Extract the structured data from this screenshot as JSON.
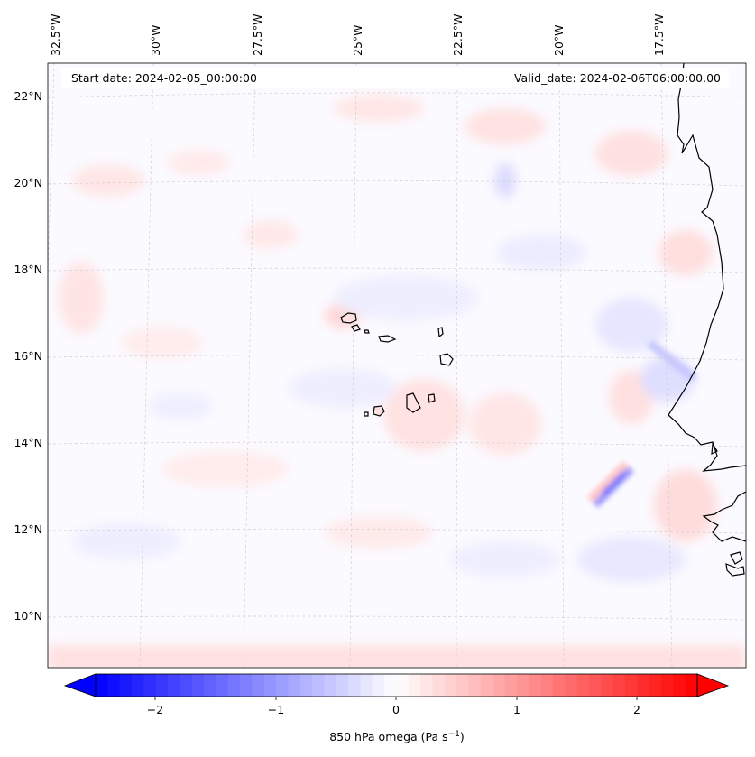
{
  "header": {
    "start_date": "Start date: 2024-02-05_00:00:00",
    "valid_date": "Valid_date: 2024-02-06T06:00:00.00"
  },
  "lon_labels": [
    "32.5°W",
    "30°W",
    "27.5°W",
    "25°W",
    "22.5°W",
    "20°W",
    "17.5°W"
  ],
  "lat_labels": [
    "22°N",
    "20°N",
    "18°N",
    "16°N",
    "14°N",
    "12°N",
    "10°N"
  ],
  "colorbar": {
    "ticks": [
      "−2",
      "−1",
      "0",
      "1",
      "2"
    ],
    "title_main": "850 hPa omega (Pa s",
    "title_sup": "−1",
    "title_close": ")",
    "range": [
      -2.5,
      2.5
    ],
    "colors": {
      "negative": "#0000ff",
      "zero": "#ffffff",
      "positive": "#ff0000"
    }
  },
  "map": {
    "projection": "Lambert conformal",
    "features": [
      "coastlines",
      "gridlines",
      "Cape Verde islands",
      "West African coast"
    ]
  }
}
